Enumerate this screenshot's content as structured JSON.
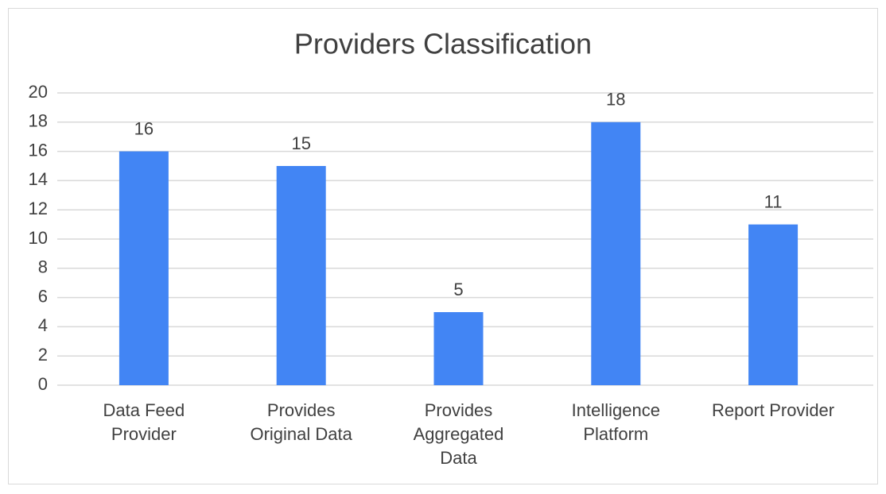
{
  "chart_data": {
    "type": "bar",
    "title": "Providers Classification",
    "categories": [
      "Data Feed Provider",
      "Provides Original Data",
      "Provides Aggregated Data",
      "Intelligence Platform",
      "Report Provider"
    ],
    "values": [
      16,
      15,
      5,
      18,
      11
    ],
    "color": "#4285f4",
    "ylim": [
      0,
      20
    ],
    "yticks": [
      0,
      2,
      4,
      6,
      8,
      10,
      12,
      14,
      16,
      18,
      20
    ],
    "grid": true
  }
}
